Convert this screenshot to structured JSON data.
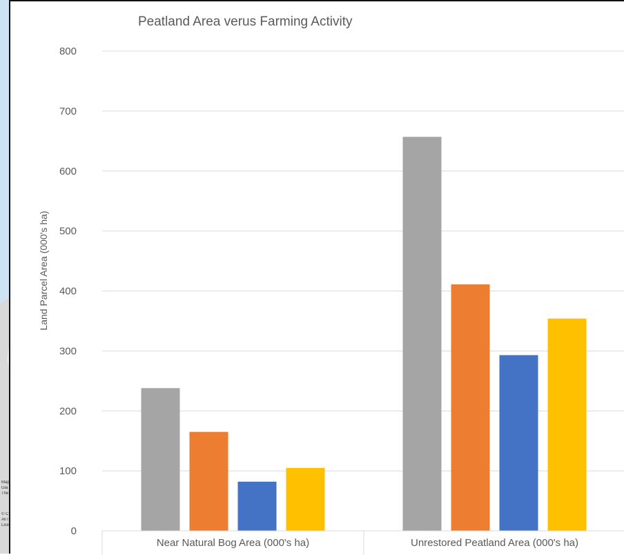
{
  "background_map": {
    "notes": [
      "Map",
      "Gia",
      "The",
      "",
      "© C",
      "All r",
      "Lice"
    ]
  },
  "chart_data": {
    "type": "bar",
    "title": "Peatland Area verus Farming Activity",
    "ylabel": "Land Parcel Area (000's ha)",
    "xlabel": "",
    "categories": [
      "Near Natural Bog Area (000's ha)",
      "Unrestored Peatland Area (000's ha)"
    ],
    "ylim": [
      0,
      800
    ],
    "yticks": [
      0,
      100,
      200,
      300,
      400,
      500,
      600,
      700,
      800
    ],
    "grid": true,
    "series": [
      {
        "color": "#a5a5a5",
        "values": [
          238,
          657
        ]
      },
      {
        "color": "#ed7d31",
        "values": [
          165,
          411
        ]
      },
      {
        "color": "#4472c4",
        "values": [
          82,
          293
        ]
      },
      {
        "color": "#ffc000",
        "values": [
          105,
          354
        ]
      }
    ]
  }
}
